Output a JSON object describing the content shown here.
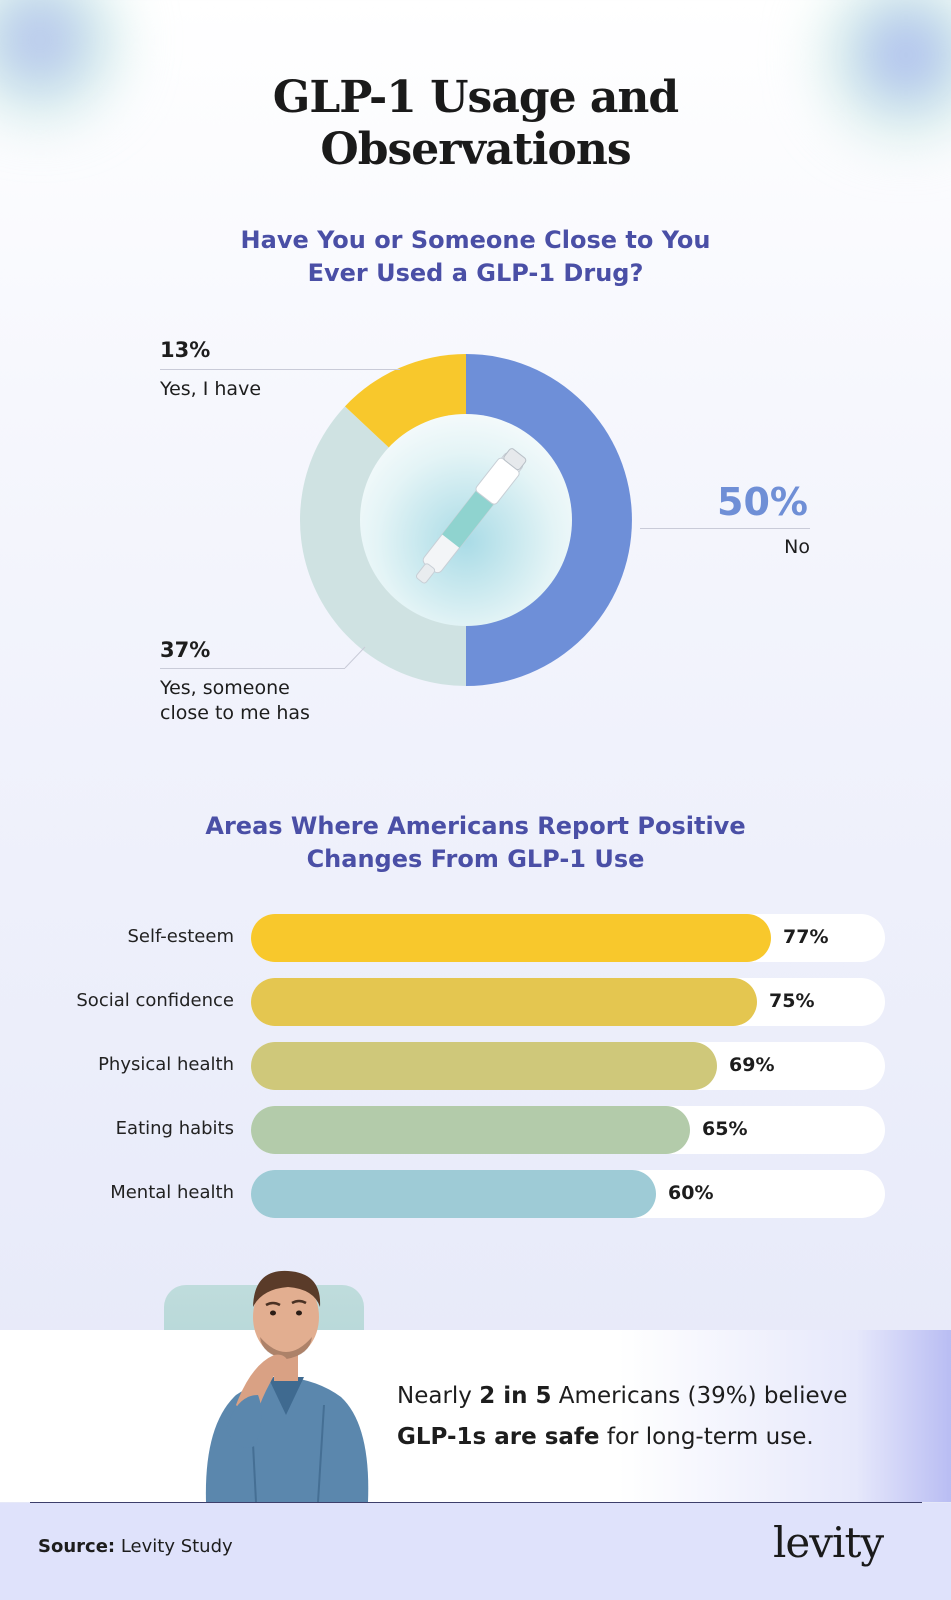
{
  "title_line1": "GLP-1 Usage and",
  "title_line2": "Observations",
  "donut_section": {
    "title_line1": "Have You or Someone Close to You",
    "title_line2": "Ever Used a GLP-1 Drug?"
  },
  "bar_section": {
    "title_line1": "Areas Where Americans Report Positive",
    "title_line2": "Changes From GLP-1 Use"
  },
  "chart_data": [
    {
      "type": "pie",
      "title": "Have You or Someone Close to You Ever Used a GLP-1 Drug?",
      "slices": [
        {
          "label": "No",
          "value": 50,
          "display": "50%",
          "color": "#6e8fd8"
        },
        {
          "label": "Yes, someone close to me has",
          "label_line1": "Yes, someone",
          "label_line2": "close to me has",
          "value": 37,
          "display": "37%",
          "color": "#cfe2e2"
        },
        {
          "label": "Yes, I  have",
          "value": 13,
          "display": "13%",
          "color": "#f8c82c"
        }
      ]
    },
    {
      "type": "bar",
      "orientation": "horizontal",
      "title": "Areas Where Americans Report Positive Changes From GLP-1 Use",
      "categories": [
        "Self-esteem",
        "Social confidence",
        "Physical health",
        "Eating habits",
        "Mental health"
      ],
      "values": [
        77,
        75,
        69,
        65,
        60
      ],
      "value_labels": [
        "77%",
        "75%",
        "69%",
        "65%",
        "60%"
      ],
      "colors": [
        "#f8c82c",
        "#e4c650",
        "#cfc87a",
        "#b3cbaa",
        "#9ecbd6"
      ],
      "xlim": [
        0,
        100
      ]
    }
  ],
  "callout": {
    "t1": "Nearly ",
    "b1": "2 in 5",
    "t2": " Americans (39%) believe",
    "b2": "GLP-1s are safe",
    "t3": " for long-term use."
  },
  "footer": {
    "source_label": "Source:",
    "source_text": " Levity Study",
    "logo": "levity"
  }
}
